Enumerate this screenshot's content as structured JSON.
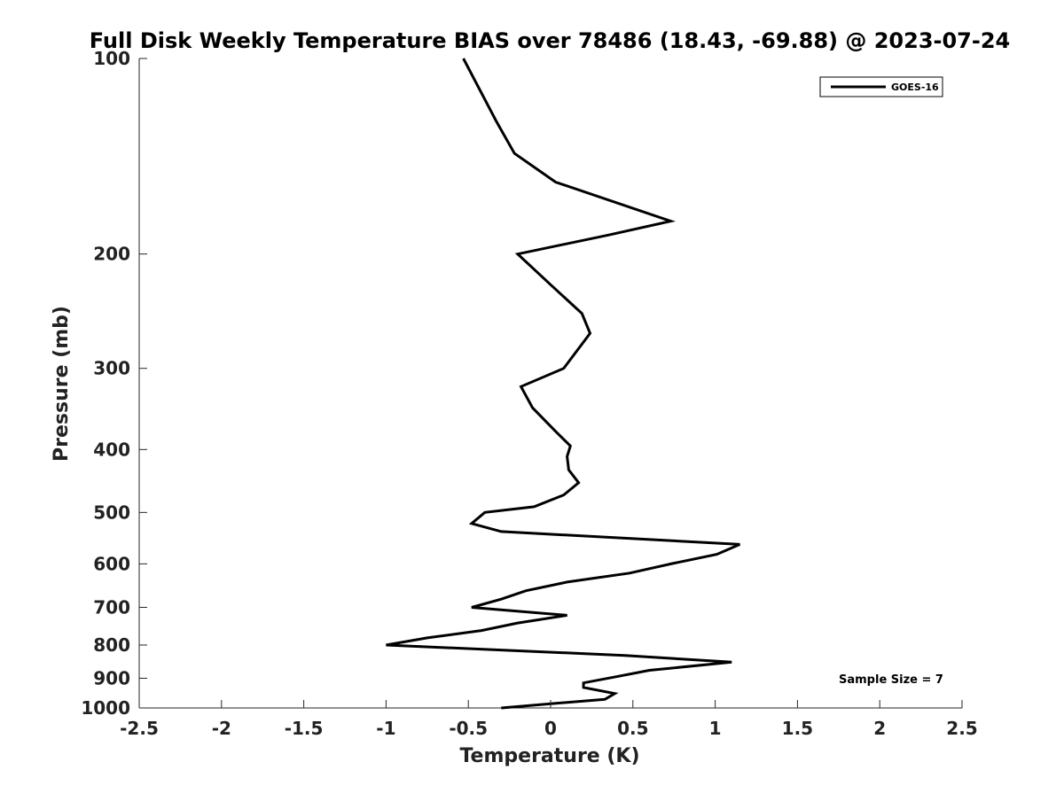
{
  "chart_data": {
    "type": "line",
    "title": "Full Disk Weekly Temperature BIAS over 78486 (18.43, -69.88) @ 2023-07-24",
    "xlabel": "Temperature (K)",
    "ylabel": "Pressure (mb)",
    "xlim": [
      -2.5,
      2.5
    ],
    "ylim": [
      100,
      1000
    ],
    "y_scale": "log",
    "y_reversed": true,
    "x_ticks": [
      -2.5,
      -2,
      -1.5,
      -1,
      -0.5,
      0,
      0.5,
      1,
      1.5,
      2,
      2.5
    ],
    "x_tick_labels": [
      "-2.5",
      "-2",
      "-1.5",
      "-1",
      "-0.5",
      "0",
      "0.5",
      "1",
      "1.5",
      "2",
      "2.5"
    ],
    "y_ticks": [
      100,
      200,
      300,
      400,
      500,
      600,
      700,
      800,
      900,
      1000
    ],
    "y_tick_labels": [
      "100",
      "200",
      "300",
      "400",
      "500",
      "600",
      "700",
      "800",
      "900",
      "1000"
    ],
    "grid": false,
    "legend_position": "top-right",
    "series": [
      {
        "name": "GOES-16",
        "color": "#000000",
        "points": [
          [
            -0.53,
            100
          ],
          [
            -0.33,
            125
          ],
          [
            -0.22,
            140
          ],
          [
            0.03,
            155
          ],
          [
            0.73,
            178
          ],
          [
            0.35,
            187
          ],
          [
            -0.2,
            200
          ],
          [
            0.0,
            223
          ],
          [
            0.19,
            247
          ],
          [
            0.24,
            265
          ],
          [
            0.08,
            300
          ],
          [
            -0.18,
            320
          ],
          [
            -0.11,
            345
          ],
          [
            0.03,
            375
          ],
          [
            0.12,
            395
          ],
          [
            0.1,
            410
          ],
          [
            0.11,
            430
          ],
          [
            0.17,
            450
          ],
          [
            0.08,
            470
          ],
          [
            -0.1,
            490
          ],
          [
            -0.4,
            500
          ],
          [
            -0.48,
            520
          ],
          [
            -0.3,
            535
          ],
          [
            1.15,
            560
          ],
          [
            1.01,
            580
          ],
          [
            0.73,
            600
          ],
          [
            0.48,
            620
          ],
          [
            0.1,
            640
          ],
          [
            -0.15,
            660
          ],
          [
            -0.3,
            680
          ],
          [
            -0.48,
            700
          ],
          [
            0.1,
            720
          ],
          [
            -0.2,
            740
          ],
          [
            -0.42,
            760
          ],
          [
            -0.75,
            780
          ],
          [
            -1.0,
            800
          ],
          [
            0.45,
            830
          ],
          [
            1.1,
            850
          ],
          [
            0.6,
            875
          ],
          [
            0.4,
            895
          ],
          [
            0.2,
            915
          ],
          [
            0.2,
            930
          ],
          [
            0.39,
            950
          ],
          [
            0.33,
            970
          ],
          [
            0.0,
            985
          ],
          [
            -0.3,
            1000
          ]
        ]
      }
    ],
    "annotation": "Sample Size = 7"
  }
}
